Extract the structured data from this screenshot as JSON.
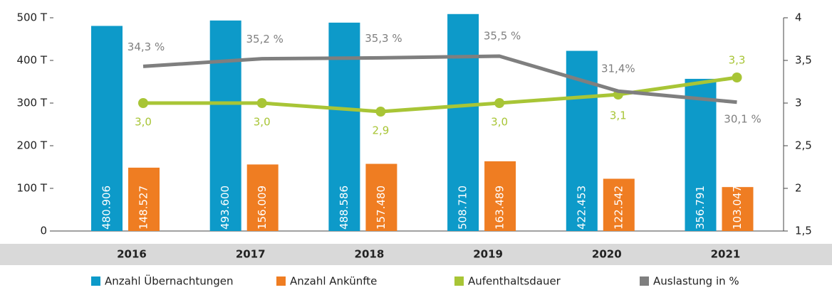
{
  "chart_data": {
    "type": "bar-line",
    "categories": [
      "2016",
      "2017",
      "2018",
      "2019",
      "2020",
      "2021"
    ],
    "ylim": [
      0,
      500000
    ],
    "yticks": [
      0,
      {
        "value": 100000,
        "label": "100 T"
      },
      {
        "value": 200000,
        "label": "200 T"
      },
      {
        "value": 300000,
        "label": "300 T"
      },
      {
        "value": 400000,
        "label": "400 T"
      },
      {
        "value": 500000,
        "label": "500 T"
      }
    ],
    "y2lim": [
      1.5,
      4
    ],
    "y2ticks": [
      {
        "value": 1.5,
        "label": "1,5"
      },
      2,
      {
        "value": 2.5,
        "label": "2,5"
      },
      3,
      {
        "value": 3.5,
        "label": "3,5"
      },
      4
    ],
    "y3lim": [
      15,
      40
    ],
    "legend": "bottom",
    "series": [
      {
        "name": "Anzahl Übernachtungen",
        "type": "bar",
        "color": "#0d9ac9",
        "values": [
          480906,
          493600,
          488586,
          508710,
          422453,
          356791
        ],
        "value_labels": [
          "480.906",
          "493.600",
          "488.586",
          "508.710",
          "422.453",
          "356.791"
        ]
      },
      {
        "name": "Anzahl Ankünfte",
        "type": "bar",
        "color": "#ef7d22",
        "values": [
          148527,
          156009,
          157480,
          163489,
          122542,
          103047
        ],
        "value_labels": [
          "148.527",
          "156.009",
          "157.480",
          "163.489",
          "122.542",
          "103.047"
        ]
      },
      {
        "name": "Aufenthaltsdauer",
        "type": "line",
        "axis": "y2",
        "color": "#a8c536",
        "markers": true,
        "values": [
          3.0,
          3.0,
          2.9,
          3.0,
          3.1,
          3.3
        ],
        "value_labels": [
          "3,0",
          "3,0",
          "2,9",
          "3,0",
          "3,1",
          "3,3"
        ]
      },
      {
        "name": "Auslastung in %",
        "type": "line",
        "axis": "y3",
        "color": "#7f7f7f",
        "markers": false,
        "values": [
          34.3,
          35.2,
          35.3,
          35.5,
          31.4,
          30.1
        ],
        "value_labels": [
          "34,3 %",
          "35,2 %",
          "35,3 %",
          "35,5 %",
          "31,4%",
          "30,1 %"
        ]
      }
    ]
  }
}
